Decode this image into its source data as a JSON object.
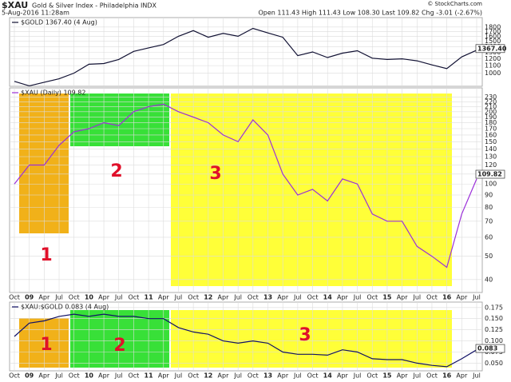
{
  "header": {
    "symbol": "$XAU",
    "name": "Gold & Silver Index - Philadelphia INDX",
    "date": "5-Aug-2016 11:28am",
    "quote": "Open 111.43  High 111.43  Low 108.30  Last 109.82  Chg -3.01 (-2.67%)",
    "credit": "© StockCharts.com"
  },
  "chart_data": [
    {
      "type": "line",
      "title": "$GOLD 1367.40 (4 Aug)",
      "log_scale": true,
      "grid": true,
      "color": "#111133",
      "values": [
        900,
        850,
        890,
        930,
        1000,
        1120,
        1130,
        1190,
        1320,
        1380,
        1440,
        1600,
        1720,
        1580,
        1660,
        1600,
        1770,
        1670,
        1580,
        1250,
        1310,
        1220,
        1290,
        1330,
        1210,
        1190,
        1200,
        1170,
        1110,
        1060,
        1230,
        1340
      ],
      "ylim": [
        880,
        1950
      ],
      "yticks": [
        1000,
        1100,
        1200,
        1300,
        1400,
        1500,
        1600,
        1700,
        1800
      ],
      "last": {
        "value": 1367.4,
        "label": "1367.40"
      }
    },
    {
      "type": "line",
      "title": "$XAU (Daily) 109.82",
      "log_scale": true,
      "grid": true,
      "color": "#9b30d9",
      "categories": [
        "Oct",
        "09",
        "Apr",
        "Jul",
        "Oct",
        "10",
        "Apr",
        "Jul",
        "Oct",
        "11",
        "Apr",
        "Jul",
        "Oct",
        "12",
        "Apr",
        "Jul",
        "Oct",
        "13",
        "Apr",
        "Jul",
        "Oct",
        "14",
        "Apr",
        "Jul",
        "Oct",
        "15",
        "Apr",
        "Jul",
        "Oct",
        "16",
        "Apr",
        "Jul"
      ],
      "values": [
        100,
        120,
        120,
        145,
        165,
        170,
        180,
        175,
        200,
        210,
        215,
        200,
        190,
        180,
        160,
        150,
        185,
        160,
        110,
        90,
        95,
        85,
        105,
        100,
        75,
        70,
        70,
        55,
        50,
        45,
        75,
        105
      ],
      "ylim": [
        37,
        240
      ],
      "yticks": [
        40,
        50,
        60,
        70,
        80,
        90,
        100,
        110,
        120,
        130,
        140,
        150,
        160,
        170,
        180,
        190,
        200,
        210,
        220,
        230
      ],
      "last": {
        "value": 109.82,
        "label": "109.82"
      },
      "annotations": [
        {
          "text": "1",
          "color": "#f0a800"
        },
        {
          "text": "2",
          "color": "#22dd22"
        },
        {
          "text": "3",
          "color": "#ffff22"
        }
      ]
    },
    {
      "type": "line",
      "title": "$XAU:$GOLD 0.083 (4 Aug)",
      "log_scale": false,
      "grid": true,
      "color": "#111166",
      "categories": [
        "Oct",
        "09",
        "Apr",
        "Jul",
        "Oct",
        "10",
        "Apr",
        "Jul",
        "Oct",
        "11",
        "Apr",
        "Jul",
        "Oct",
        "12",
        "Apr",
        "Jul",
        "Oct",
        "13",
        "Apr",
        "Jul",
        "Oct",
        "14",
        "Apr",
        "Jul",
        "Oct",
        "15",
        "Apr",
        "Jul",
        "Oct",
        "16",
        "Apr",
        "Jul"
      ],
      "values": [
        0.11,
        0.14,
        0.145,
        0.155,
        0.16,
        0.155,
        0.16,
        0.155,
        0.155,
        0.15,
        0.15,
        0.13,
        0.12,
        0.115,
        0.1,
        0.095,
        0.1,
        0.095,
        0.075,
        0.07,
        0.07,
        0.068,
        0.08,
        0.075,
        0.06,
        0.058,
        0.058,
        0.05,
        0.045,
        0.042,
        0.06,
        0.08
      ],
      "ylim": [
        0.04,
        0.18
      ],
      "yticks": [
        {
          "value": 0.05,
          "label": "0.050"
        },
        0.075,
        {
          "value": 0.1,
          "label": "0.100"
        },
        0.125,
        {
          "value": 0.15,
          "label": "0.150"
        },
        0.175
      ],
      "last": {
        "value": 0.083,
        "label": "0.083"
      },
      "annotations": [
        {
          "text": "1",
          "color": "#f0a800"
        },
        {
          "text": "2",
          "color": "#22dd22"
        },
        {
          "text": "3",
          "color": "#ffff22"
        }
      ]
    }
  ]
}
